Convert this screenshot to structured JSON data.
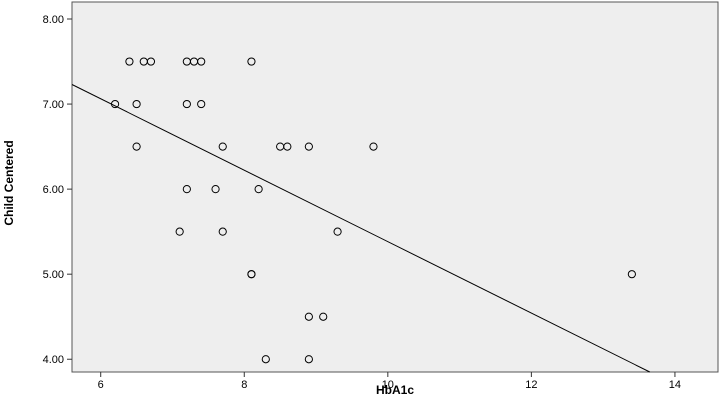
{
  "chart_data": {
    "type": "scatter",
    "title": "",
    "xlabel": "HbA1c",
    "ylabel": "Child Centered",
    "xlim": [
      5.6,
      14.6
    ],
    "ylim": [
      3.85,
      8.2
    ],
    "x_ticks": [
      6,
      8,
      10,
      12,
      14
    ],
    "y_ticks": [
      4.0,
      5.0,
      6.0,
      7.0,
      8.0
    ],
    "x_tick_labels": [
      "6",
      "8",
      "10",
      "12",
      "14"
    ],
    "y_tick_labels": [
      "4.00",
      "5.00",
      "6.00",
      "7.00",
      "8.00"
    ],
    "grid": false,
    "legend": "none",
    "colors": {
      "plot_background": "#eeeeee",
      "frame": "#555555",
      "marker": "#000000",
      "fit_line": "#000000"
    },
    "points": [
      {
        "x": 6.2,
        "y": 7.0
      },
      {
        "x": 6.4,
        "y": 7.5
      },
      {
        "x": 6.5,
        "y": 7.0
      },
      {
        "x": 6.5,
        "y": 6.5
      },
      {
        "x": 6.6,
        "y": 7.5
      },
      {
        "x": 6.7,
        "y": 7.5
      },
      {
        "x": 7.1,
        "y": 5.5
      },
      {
        "x": 7.2,
        "y": 7.5
      },
      {
        "x": 7.2,
        "y": 7.0
      },
      {
        "x": 7.2,
        "y": 6.0
      },
      {
        "x": 7.3,
        "y": 7.5
      },
      {
        "x": 7.4,
        "y": 7.5
      },
      {
        "x": 7.4,
        "y": 7.0
      },
      {
        "x": 7.6,
        "y": 6.0
      },
      {
        "x": 7.7,
        "y": 6.5
      },
      {
        "x": 7.7,
        "y": 5.5
      },
      {
        "x": 8.1,
        "y": 7.5
      },
      {
        "x": 8.1,
        "y": 5.0
      },
      {
        "x": 8.1,
        "y": 5.0
      },
      {
        "x": 8.2,
        "y": 6.0
      },
      {
        "x": 8.3,
        "y": 4.0
      },
      {
        "x": 8.5,
        "y": 6.5
      },
      {
        "x": 8.6,
        "y": 6.5
      },
      {
        "x": 8.9,
        "y": 6.5
      },
      {
        "x": 8.9,
        "y": 4.5
      },
      {
        "x": 8.9,
        "y": 4.0
      },
      {
        "x": 9.1,
        "y": 4.5
      },
      {
        "x": 9.3,
        "y": 5.5
      },
      {
        "x": 9.8,
        "y": 6.5
      },
      {
        "x": 13.4,
        "y": 5.0
      }
    ],
    "fit_line": {
      "x": [
        5.6,
        13.65
      ],
      "y": [
        7.23,
        3.85
      ]
    }
  }
}
